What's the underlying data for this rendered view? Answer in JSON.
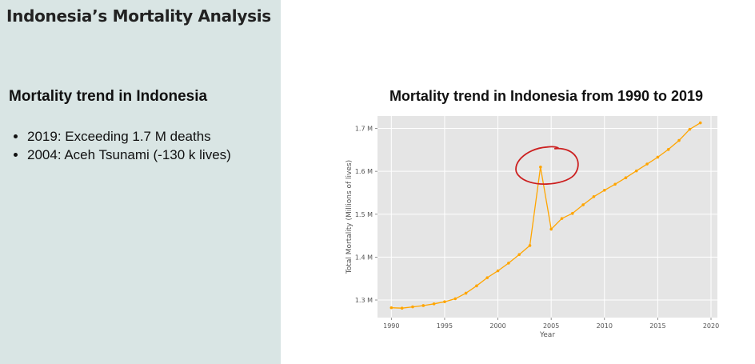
{
  "app": {
    "title": "Indonesia’s Mortality Analysis"
  },
  "sidebar": {
    "heading": "Mortality trend in Indonesia",
    "bullets": [
      "2019: Exceeding 1.7 M deaths",
      "2004: Aceh Tsunami (-130 k lives)"
    ]
  },
  "chart_data": {
    "type": "line",
    "title": "Mortality trend in Indonesia from 1990 to 2019",
    "xlabel": "Year",
    "ylabel": "Total Mortality (Millions of lives)",
    "x": [
      1990,
      1991,
      1992,
      1993,
      1994,
      1995,
      1996,
      1997,
      1998,
      1999,
      2000,
      2001,
      2002,
      2003,
      2004,
      2005,
      2006,
      2007,
      2008,
      2009,
      2010,
      2011,
      2012,
      2013,
      2014,
      2015,
      2016,
      2017,
      2018,
      2019
    ],
    "series": [
      {
        "values": [
          1.282,
          1.281,
          1.284,
          1.287,
          1.291,
          1.296,
          1.303,
          1.316,
          1.333,
          1.352,
          1.368,
          1.386,
          1.406,
          1.427,
          1.61,
          1.465,
          1.49,
          1.502,
          1.522,
          1.541,
          1.556,
          1.57,
          1.585,
          1.601,
          1.617,
          1.633,
          1.651,
          1.672,
          1.698,
          1.713
        ],
        "color": "#ffa500"
      }
    ],
    "xticks": [
      1990,
      1995,
      2000,
      2005,
      2010,
      2015,
      2020
    ],
    "xtick_labels": [
      "1990",
      "1995",
      "2000",
      "2005",
      "2010",
      "2015",
      "2020"
    ],
    "yticks": [
      1.3,
      1.4,
      1.5,
      1.6,
      1.7
    ],
    "ytick_labels": [
      "1.3 M",
      "1.4 M",
      "1.5 M",
      "1.6 M",
      "1.7 M"
    ],
    "xlim": [
      1988.7,
      2020.6
    ],
    "ylim": [
      1.259,
      1.729
    ],
    "grid": true,
    "background": "#e5e5e5",
    "annotation": {
      "shape": "hand-drawn-circle",
      "x": 2004,
      "y": 1.61,
      "color": "#cc1f1f"
    }
  }
}
